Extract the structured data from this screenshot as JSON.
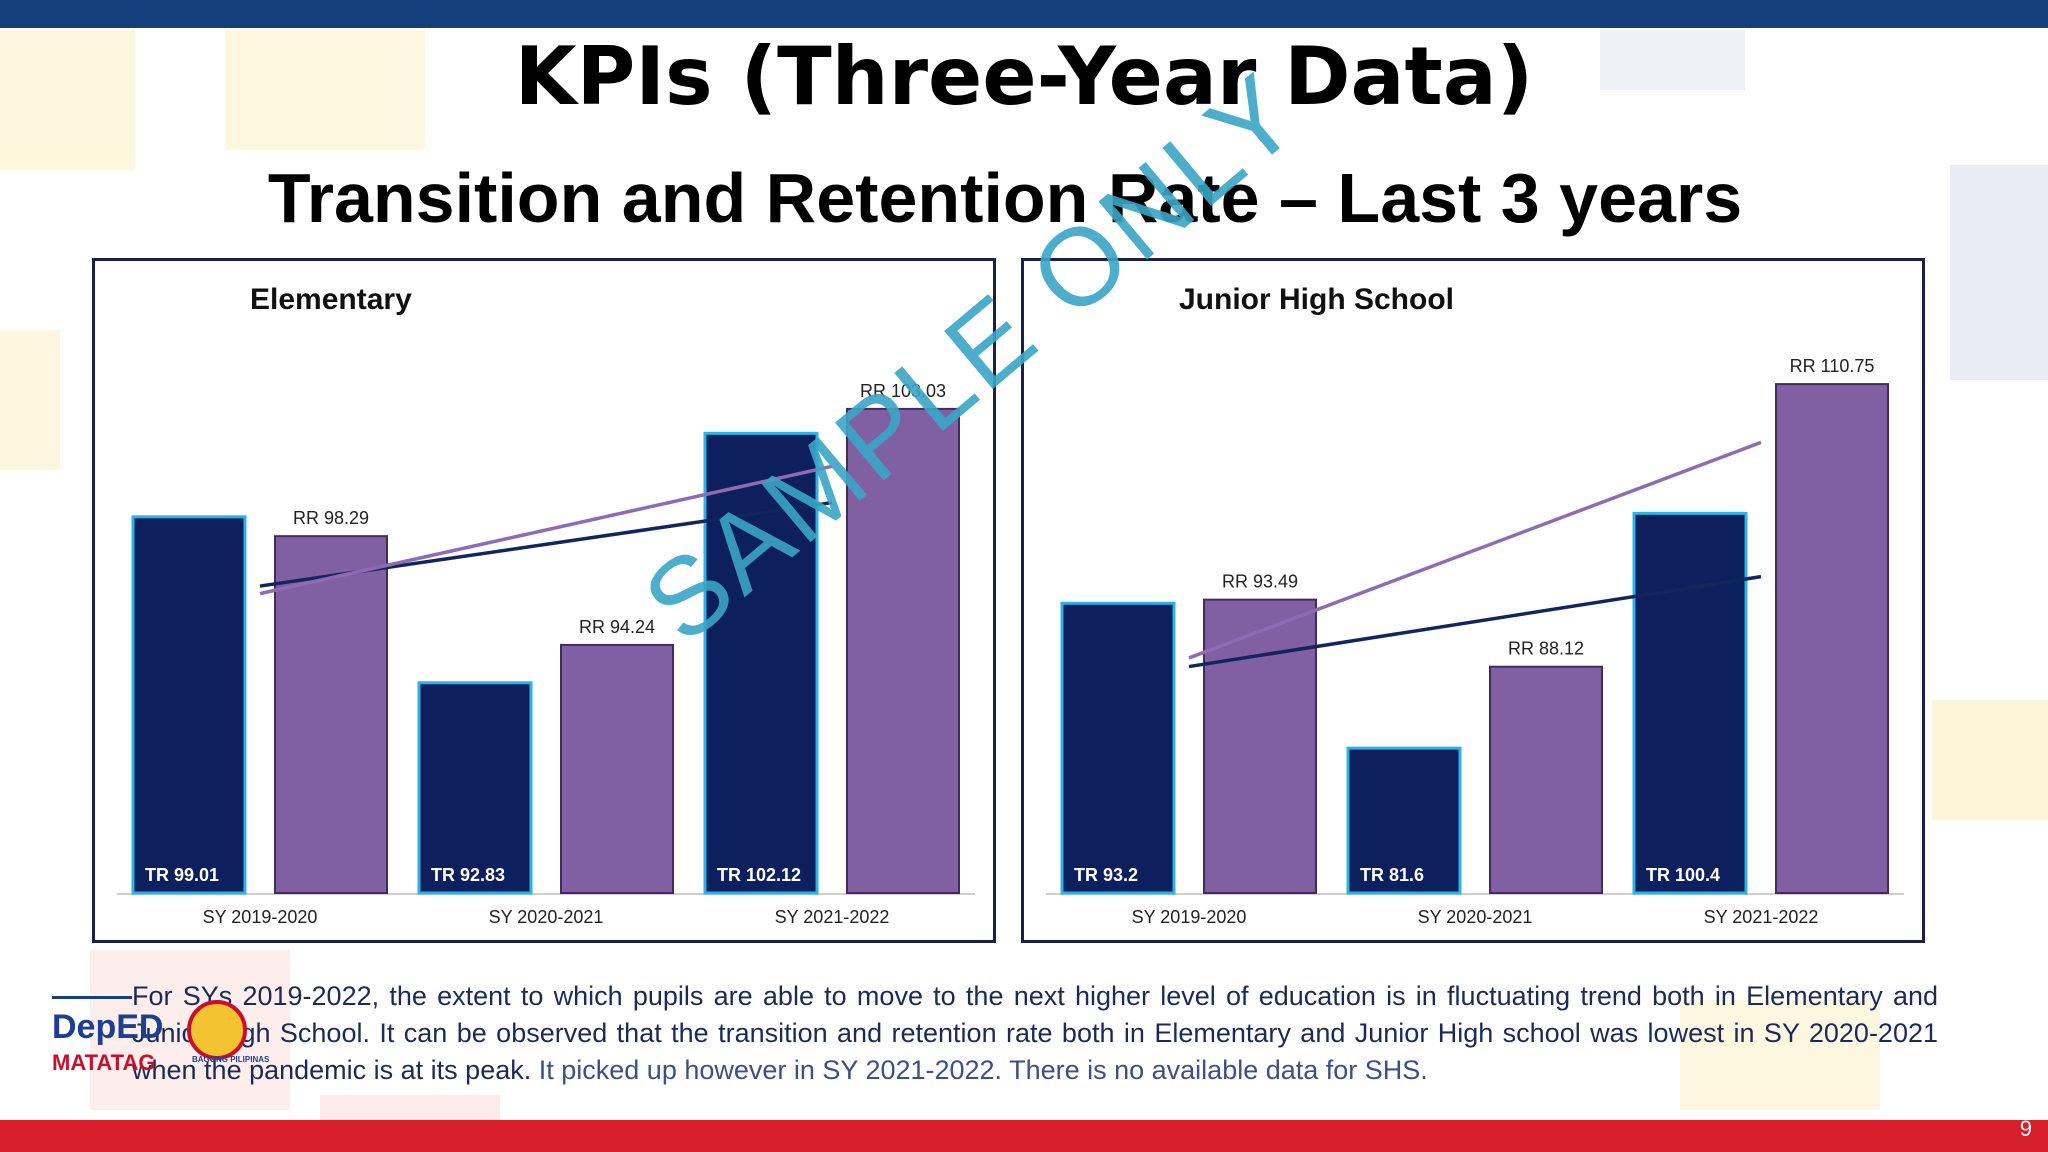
{
  "slide": {
    "title": "KPIs (Three-Year Data)",
    "subtitle": "Transition and Retention Rate – Last 3 years",
    "page_number": "9",
    "watermark": "SAMPLE ONLY",
    "description_main": "For SYs 2019-2022, the extent to which pupils are able to move to the next higher level of education is in fluctuating trend both in Elementary and Junior High School. It can be observed that the transition and retention rate both in Elementary and Junior High school was lowest in SY 2020-2021 when the pandemic is at its peak.",
    "description_highlight": "It picked up however in SY 2021-2022. There is no available data for SHS.",
    "logo": {
      "deped": "DepED",
      "matatag": "MATATAG",
      "bagong": "BAGONG PILIPINAS"
    }
  },
  "colors": {
    "tr": "#0d1f5c",
    "tr_border": "#2bb3e6",
    "rr": "#8060a2",
    "tr_trend": "#12265e",
    "rr_trend": "#8e6cb5",
    "top_bar": "#163f7d",
    "bottom_bar": "#d71f2c"
  },
  "chart_data": [
    {
      "type": "bar",
      "title": "Elementary",
      "categories": [
        "SY 2019-2020",
        "SY 2020-2021",
        "SY 2021-2022"
      ],
      "series": [
        {
          "name": "TR",
          "values": [
            99.01,
            92.83,
            102.12
          ],
          "labels": [
            "TR 99.01",
            "TR 92.83",
            "TR 102.12"
          ]
        },
        {
          "name": "RR",
          "values": [
            98.29,
            94.24,
            103.03
          ],
          "labels": [
            "RR 98.29",
            "RR 94.24",
            "RR 103.03"
          ]
        }
      ],
      "trendlines": [
        "TR",
        "RR"
      ],
      "ylim": [
        85,
        105
      ]
    },
    {
      "type": "bar",
      "title": "Junior High School",
      "categories": [
        "SY 2019-2020",
        "SY 2020-2021",
        "SY 2021-2022"
      ],
      "series": [
        {
          "name": "TR",
          "values": [
            93.2,
            81.6,
            100.4
          ],
          "labels": [
            "TR 93.2",
            "TR 81.6",
            "TR 100.4"
          ]
        },
        {
          "name": "RR",
          "values": [
            93.49,
            88.12,
            110.75
          ],
          "labels": [
            "RR 93.49",
            "RR 88.12",
            "RR 110.75"
          ]
        }
      ],
      "trendlines": [
        "TR",
        "RR"
      ],
      "ylim": [
        70,
        113
      ]
    }
  ]
}
